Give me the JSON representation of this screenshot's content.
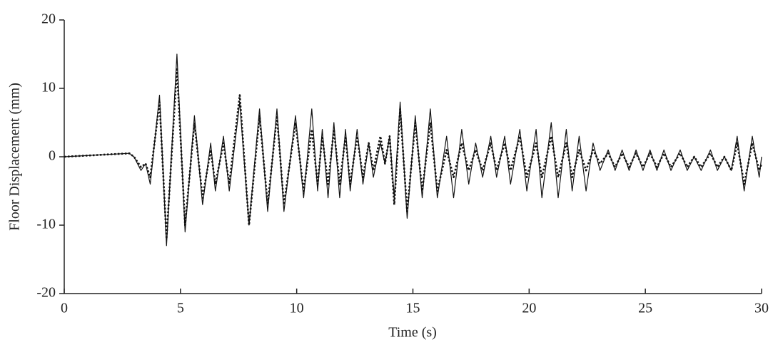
{
  "chart_data": {
    "type": "line",
    "xlabel": "Time (s)",
    "ylabel": "Floor Displacement (mm)",
    "x": [
      0,
      2.8,
      3.0,
      3.3,
      3.5,
      3.7,
      4.1,
      4.4,
      4.85,
      5.2,
      5.6,
      5.95,
      6.3,
      6.5,
      6.85,
      7.1,
      7.55,
      7.95,
      8.4,
      8.75,
      9.15,
      9.45,
      9.95,
      10.3,
      10.65,
      10.9,
      11.1,
      11.35,
      11.6,
      11.85,
      12.1,
      12.3,
      12.6,
      12.85,
      13.1,
      13.3,
      13.6,
      13.8,
      14.0,
      14.2,
      14.45,
      14.75,
      15.1,
      15.4,
      15.75,
      16.05,
      16.45,
      16.75,
      17.1,
      17.4,
      17.7,
      18.0,
      18.35,
      18.6,
      18.95,
      19.2,
      19.6,
      19.9,
      20.3,
      20.55,
      20.95,
      21.25,
      21.6,
      21.85,
      22.15,
      22.45,
      22.75,
      23.05,
      23.4,
      23.7,
      24.0,
      24.3,
      24.6,
      24.9,
      25.2,
      25.5,
      25.8,
      26.1,
      26.5,
      26.8,
      27.1,
      27.4,
      27.8,
      28.1,
      28.4,
      28.7,
      28.95,
      29.25,
      29.6,
      29.9,
      30
    ],
    "series": [
      {
        "color": "#111111",
        "style": "solid",
        "values": [
          0,
          0.5,
          0,
          -2,
          -1,
          -4,
          9,
          -13,
          15,
          -11,
          6,
          -7,
          2,
          -5,
          3,
          -5,
          8,
          -10,
          7,
          -8,
          7,
          -8,
          6,
          -6,
          7,
          -5,
          4,
          -6,
          5,
          -6,
          4,
          -5,
          4,
          -4,
          2,
          -3,
          2,
          -1,
          3,
          -6,
          8,
          -9,
          6,
          -6,
          7,
          -6,
          3,
          -6,
          4,
          -4,
          2,
          -3,
          3,
          -3,
          3,
          -4,
          4,
          -5,
          4,
          -6,
          5,
          -6,
          4,
          -5,
          3,
          -5,
          2,
          -2,
          1,
          -2,
          1,
          -2,
          1,
          -2,
          1,
          -2,
          1,
          -2,
          1,
          -2,
          0,
          -2,
          1,
          -2,
          0,
          -2,
          3,
          -5,
          3,
          -3,
          0
        ]
      },
      {
        "color": "#111111",
        "style": "dotted",
        "values": [
          0,
          0.5,
          0,
          -1.5,
          -1,
          -3,
          8,
          -12,
          13,
          -10,
          5,
          -6,
          1,
          -4,
          2,
          -4,
          9,
          -10,
          6,
          -7,
          6,
          -7,
          5,
          -5,
          4,
          -4,
          3,
          -4,
          4,
          -4,
          3,
          -4,
          3,
          -3,
          2,
          -2,
          3,
          -1,
          3,
          -7,
          7,
          -8,
          5,
          -5,
          5,
          -5,
          1,
          -3,
          2,
          -2,
          1,
          -2,
          2,
          -2,
          2,
          -2,
          3,
          -3,
          2,
          -3,
          3,
          -3,
          2,
          -3,
          1,
          -2,
          1,
          -1,
          0.5,
          -1.5,
          0.5,
          -1.5,
          0.5,
          -1.5,
          0.5,
          -1.5,
          0.5,
          -1.5,
          0.5,
          -1.5,
          0,
          -1.5,
          0.5,
          -1.5,
          0,
          -2,
          2,
          -4,
          2,
          -2,
          -1
        ]
      }
    ],
    "xlim": [
      0,
      30
    ],
    "xticks": [
      0,
      5,
      10,
      15,
      20,
      25,
      30
    ],
    "ylim": [
      -20,
      20
    ],
    "yticks": [
      -20,
      -10,
      0,
      10,
      20
    ]
  }
}
